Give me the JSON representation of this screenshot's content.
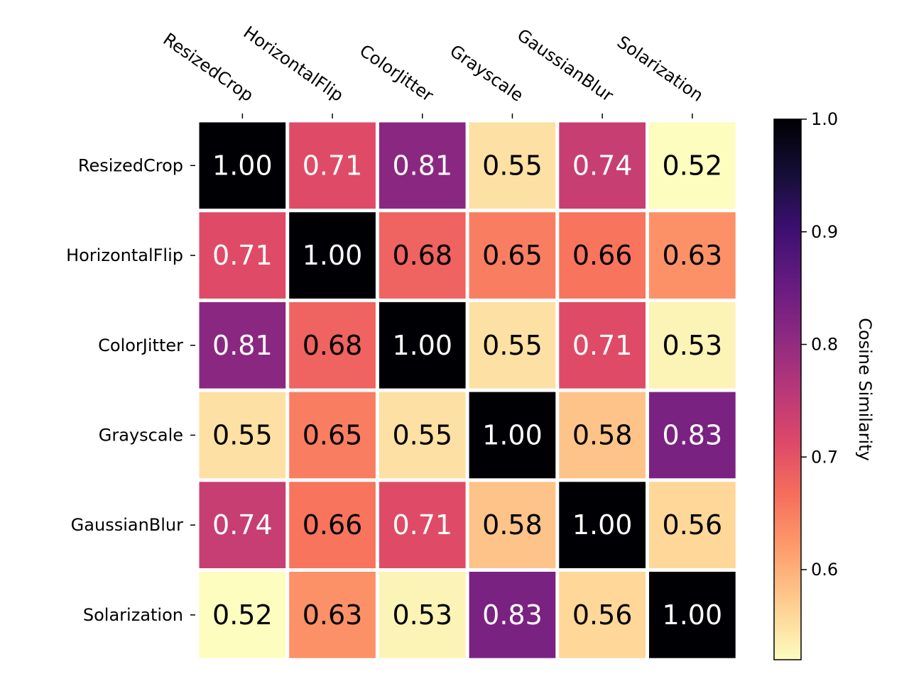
{
  "chart_data": {
    "type": "heatmap",
    "title": "",
    "row_labels": [
      "ResizedCrop",
      "HorizontalFlip",
      "ColorJitter",
      "Grayscale",
      "GaussianBlur",
      "Solarization"
    ],
    "col_labels": [
      "ResizedCrop",
      "HorizontalFlip",
      "ColorJitter",
      "Grayscale",
      "GaussianBlur",
      "Solarization"
    ],
    "values": [
      [
        1.0,
        0.71,
        0.81,
        0.55,
        0.74,
        0.52
      ],
      [
        0.71,
        1.0,
        0.68,
        0.65,
        0.66,
        0.63
      ],
      [
        0.81,
        0.68,
        1.0,
        0.55,
        0.71,
        0.53
      ],
      [
        0.55,
        0.65,
        0.55,
        1.0,
        0.58,
        0.83
      ],
      [
        0.74,
        0.66,
        0.71,
        0.58,
        1.0,
        0.56
      ],
      [
        0.52,
        0.63,
        0.53,
        0.83,
        0.56,
        1.0
      ]
    ],
    "value_format": "0.00",
    "colormap": "magma_r",
    "vmin": 0.52,
    "vmax": 1.0,
    "colorbar": {
      "label": "Cosine Similarity",
      "ticks": [
        0.6,
        0.7,
        0.8,
        0.9,
        1.0
      ],
      "tick_labels": [
        "0.6",
        "0.7",
        "0.8",
        "0.9",
        "1.0"
      ]
    },
    "x_tick_position": "top",
    "cell_border_color": "#ffffff"
  }
}
